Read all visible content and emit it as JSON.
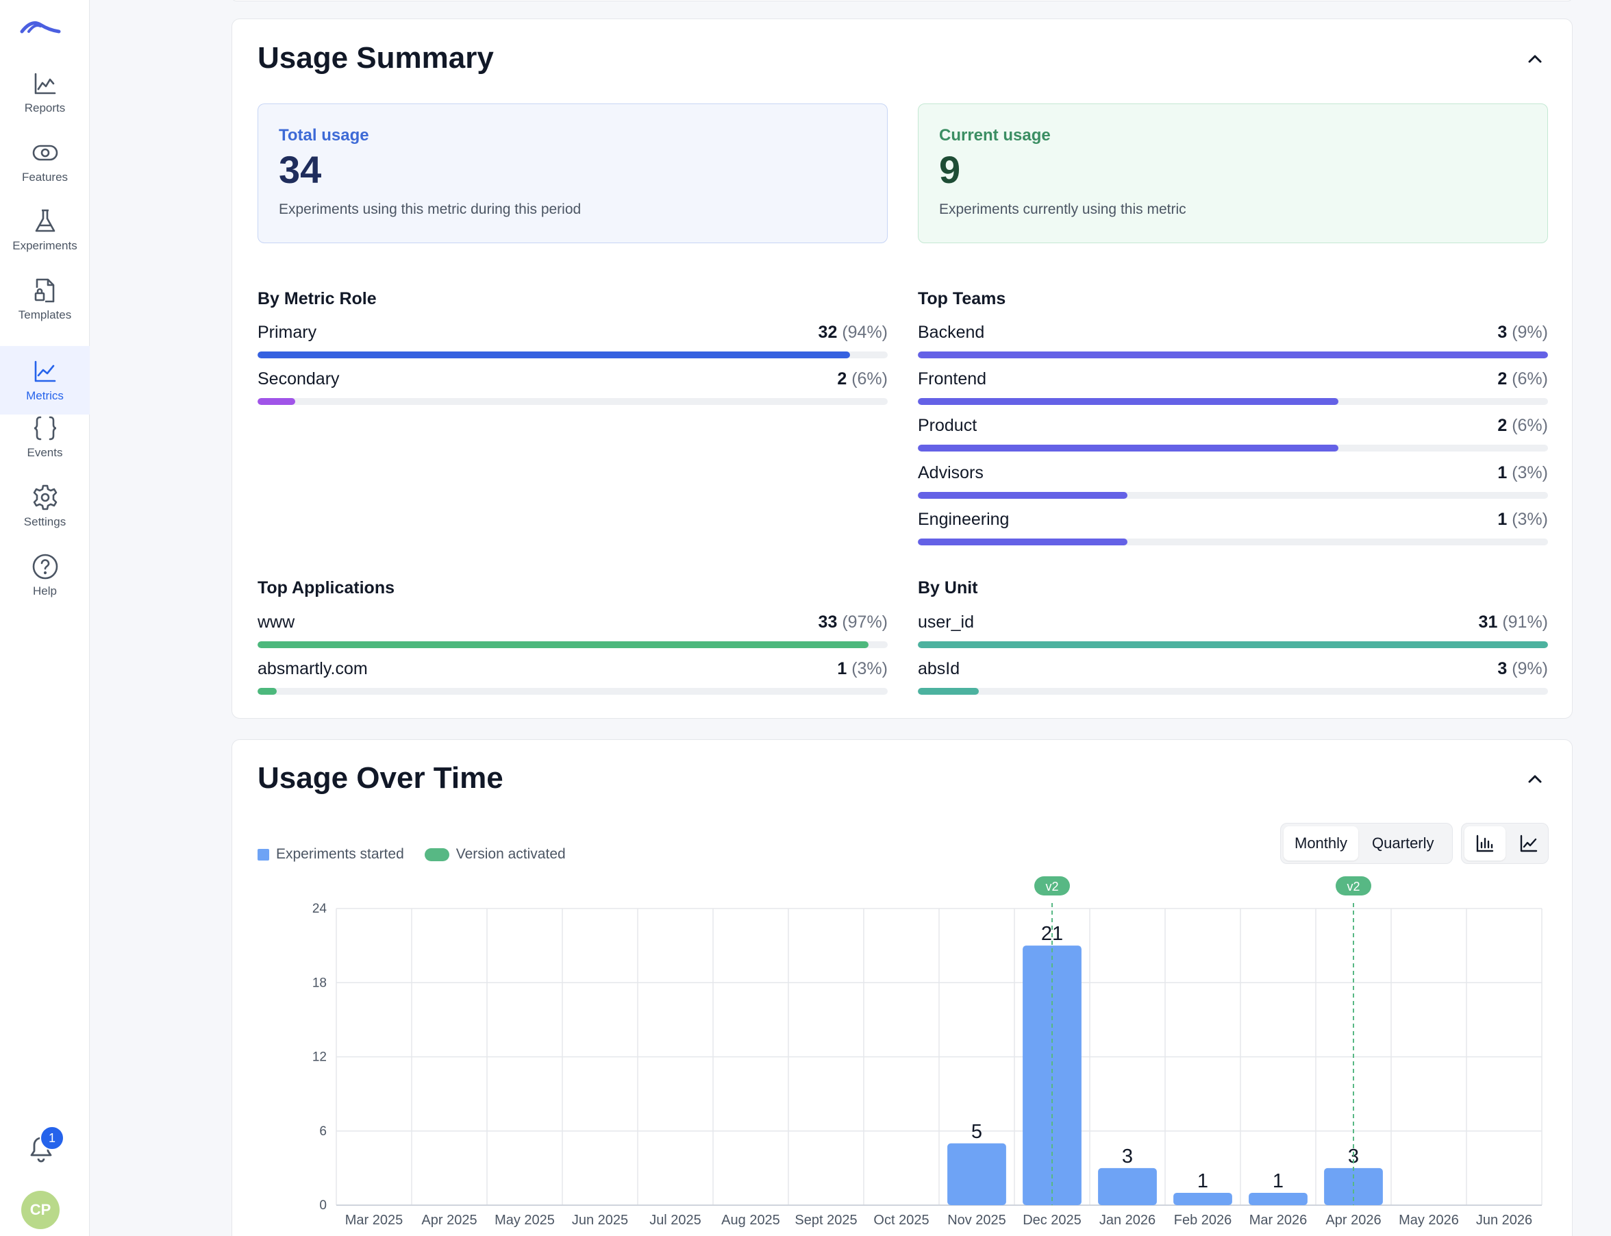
{
  "sidebar": {
    "items": [
      {
        "label": "Reports",
        "icon": "chart-area-icon"
      },
      {
        "label": "Features",
        "icon": "eye-icon"
      },
      {
        "label": "Experiments",
        "icon": "flask-icon"
      },
      {
        "label": "Templates",
        "icon": "template-file-icon"
      },
      {
        "label": "Metrics",
        "icon": "line-chart-icon"
      },
      {
        "label": "Events",
        "icon": "braces-icon"
      },
      {
        "label": "Settings",
        "icon": "gear-icon"
      },
      {
        "label": "Help",
        "icon": "question-circle-icon"
      }
    ],
    "active": "Metrics",
    "notifications_count": "1",
    "avatar_initials": "CP"
  },
  "usage_summary": {
    "title": "Usage Summary",
    "total": {
      "label": "Total usage",
      "value": "34",
      "description": "Experiments using this metric during this period"
    },
    "current": {
      "label": "Current usage",
      "value": "9",
      "description": "Experiments currently using this metric"
    },
    "by_metric_role": {
      "title": "By Metric Role",
      "rows": [
        {
          "name": "Primary",
          "count": "32",
          "pct": "(94%)",
          "fraction": 0.94,
          "color": "#3561e0"
        },
        {
          "name": "Secondary",
          "count": "2",
          "pct": "(6%)",
          "fraction": 0.06,
          "color": "#a054e8"
        }
      ]
    },
    "top_teams": {
      "title": "Top Teams",
      "rows": [
        {
          "name": "Backend",
          "count": "3",
          "pct": "(9%)",
          "fraction": 1.0,
          "color": "#6461e6"
        },
        {
          "name": "Frontend",
          "count": "2",
          "pct": "(6%)",
          "fraction": 0.667,
          "color": "#6461e6"
        },
        {
          "name": "Product",
          "count": "2",
          "pct": "(6%)",
          "fraction": 0.667,
          "color": "#6461e6"
        },
        {
          "name": "Advisors",
          "count": "1",
          "pct": "(3%)",
          "fraction": 0.333,
          "color": "#6461e6"
        },
        {
          "name": "Engineering",
          "count": "1",
          "pct": "(3%)",
          "fraction": 0.333,
          "color": "#6461e6"
        }
      ]
    },
    "top_applications": {
      "title": "Top Applications",
      "rows": [
        {
          "name": "www",
          "count": "33",
          "pct": "(97%)",
          "fraction": 0.97,
          "color": "#4cb87c"
        },
        {
          "name": "absmartly.com",
          "count": "1",
          "pct": "(3%)",
          "fraction": 0.03,
          "color": "#4cb87c"
        }
      ]
    },
    "by_unit": {
      "title": "By Unit",
      "rows": [
        {
          "name": "user_id",
          "count": "31",
          "pct": "(91%)",
          "fraction": 1.0,
          "color": "#4cb29f"
        },
        {
          "name": "absId",
          "count": "3",
          "pct": "(9%)",
          "fraction": 0.097,
          "color": "#4cb29f"
        }
      ]
    }
  },
  "usage_over_time": {
    "title": "Usage Over Time",
    "legend": {
      "experiments": "Experiments started",
      "version": "Version activated"
    },
    "toggles": {
      "monthly": "Monthly",
      "quarterly": "Quarterly",
      "active": "Monthly",
      "bar_icon": "bar-chart-icon",
      "line_icon": "line-chart-icon",
      "active_view": "bar"
    }
  },
  "chart_data": {
    "type": "bar",
    "categories": [
      "Mar 2025",
      "Apr 2025",
      "May 2025",
      "Jun 2025",
      "Jul 2025",
      "Aug 2025",
      "Sept 2025",
      "Oct 2025",
      "Nov 2025",
      "Dec 2025",
      "Jan 2026",
      "Feb 2026",
      "Mar 2026",
      "Apr 2026",
      "May 2026",
      "Jun 2026"
    ],
    "series": [
      {
        "name": "Experiments started",
        "values": [
          0,
          0,
          0,
          0,
          0,
          0,
          0,
          0,
          5,
          21,
          3,
          1,
          1,
          3,
          0,
          0
        ],
        "color": "#6ea3f5"
      }
    ],
    "data_labels": [
      "",
      "",
      "",
      "",
      "",
      "",
      "",
      "",
      "5",
      "21",
      "3",
      "1",
      "1",
      "3",
      "",
      ""
    ],
    "yticks": [
      0,
      6,
      12,
      18,
      24
    ],
    "ylim": [
      0,
      24
    ],
    "grid": true,
    "version_markers": [
      {
        "category": "Dec 2025",
        "label": "v2",
        "color": "#57b884"
      },
      {
        "category": "Apr 2026",
        "label": "v2",
        "color": "#57b884"
      }
    ],
    "title": "",
    "xlabel": "",
    "ylabel": ""
  }
}
